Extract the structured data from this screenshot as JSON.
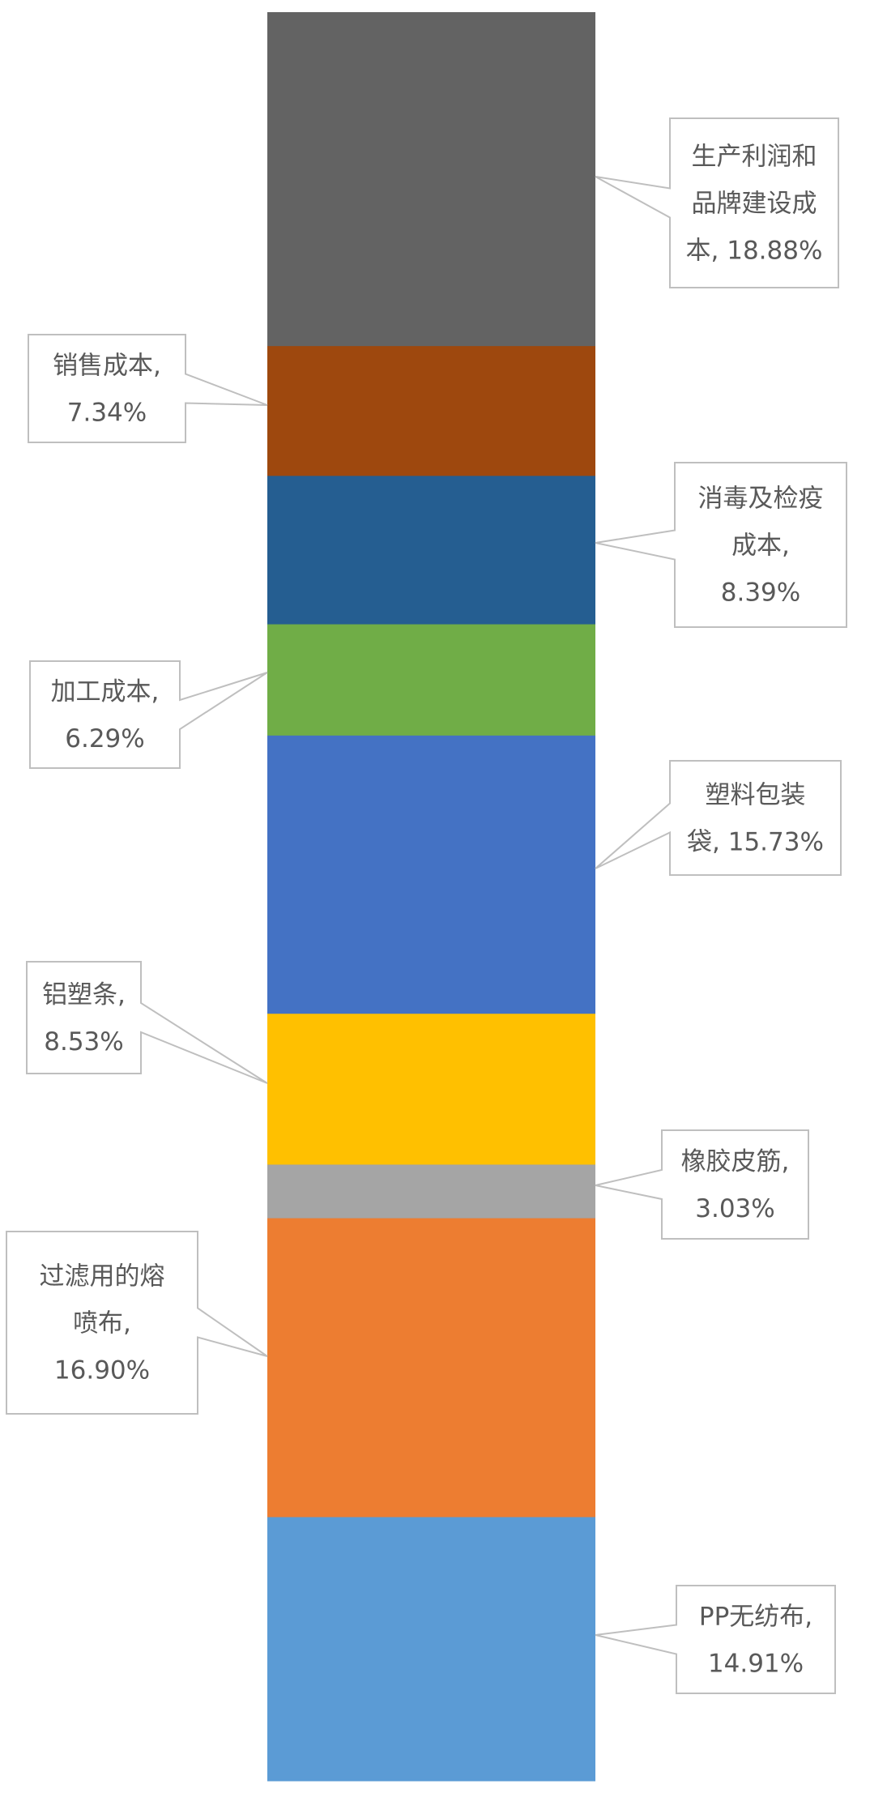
{
  "chart_data": {
    "type": "bar",
    "stacked": true,
    "orientation": "vertical",
    "unit": "%",
    "legend": "none",
    "grid": false,
    "axes_visible": false,
    "segments_top_to_bottom": [
      {
        "name": "生产利润和品牌建设成本",
        "value": 18.88,
        "color": "#636363",
        "label_lines": [
          "生产利润和",
          "品牌建设成",
          "本, 18.88%"
        ],
        "side": "right"
      },
      {
        "name": "销售成本",
        "value": 7.34,
        "color": "#9e480e",
        "label_lines": [
          "销售成本,",
          "7.34%"
        ],
        "side": "left"
      },
      {
        "name": "消毒及检疫成本",
        "value": 8.39,
        "color": "#255e91",
        "label_lines": [
          "消毒及检疫",
          "成本,",
          "8.39%"
        ],
        "side": "right"
      },
      {
        "name": "加工成本",
        "value": 6.29,
        "color": "#70ad47",
        "label_lines": [
          "加工成本,",
          "6.29%"
        ],
        "side": "left"
      },
      {
        "name": "塑料包装袋",
        "value": 15.73,
        "color": "#4472c4",
        "label_lines": [
          "塑料包装",
          "袋, 15.73%"
        ],
        "side": "right"
      },
      {
        "name": "铝塑条",
        "value": 8.53,
        "color": "#ffc000",
        "label_lines": [
          "铝塑条,",
          "8.53%"
        ],
        "side": "left"
      },
      {
        "name": "橡胶皮筋",
        "value": 3.03,
        "color": "#a5a5a5",
        "label_lines": [
          "橡胶皮筋,",
          "3.03%"
        ],
        "side": "right"
      },
      {
        "name": "过滤用的熔喷布",
        "value": 16.9,
        "color": "#ed7d31",
        "label_lines": [
          "过滤用的熔",
          "喷布,",
          "16.90%"
        ],
        "side": "left"
      },
      {
        "name": "PP无纺布",
        "value": 14.91,
        "color": "#5b9bd5",
        "label_lines": [
          "PP无纺布,",
          "14.91%"
        ],
        "side": "right"
      }
    ]
  }
}
